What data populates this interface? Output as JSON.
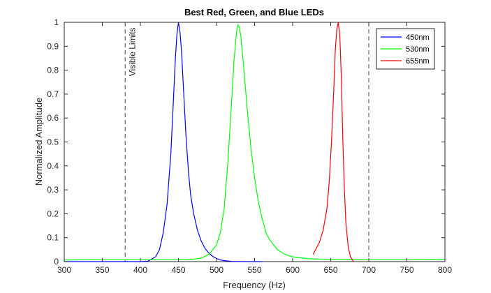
{
  "chart_data": {
    "type": "line",
    "title": "Best Red, Green, and Blue LEDs",
    "xlabel": "Frequency (Hz)",
    "ylabel": "Normalized Amplitude",
    "xlim": [
      300,
      800
    ],
    "ylim": [
      0,
      1
    ],
    "xticks": [
      300,
      350,
      400,
      450,
      500,
      550,
      600,
      650,
      700,
      750,
      800
    ],
    "yticks": [
      0,
      0.1,
      0.2,
      0.3,
      0.4,
      0.5,
      0.6,
      0.7,
      0.8,
      0.9,
      1
    ],
    "ytick_labels": [
      "0",
      "0.1",
      "0.2",
      "0.3",
      "0.4",
      "0.5",
      "0.6",
      "0.7",
      "0.8",
      "0.9",
      "1"
    ],
    "grid": false,
    "legend_position": "top-right",
    "series": [
      {
        "name": "450nm",
        "color": "#0000ff",
        "x": [
          300,
          400,
          410,
          420,
          425,
          430,
          435,
          440,
          443,
          446,
          448,
          450,
          452,
          454,
          457,
          460,
          463,
          466,
          470,
          475,
          480,
          485,
          490,
          495,
          500,
          505,
          510,
          520,
          540,
          560
        ],
        "y": [
          0.0,
          0.0,
          0.002,
          0.02,
          0.05,
          0.12,
          0.24,
          0.45,
          0.65,
          0.85,
          0.95,
          1.0,
          0.96,
          0.88,
          0.7,
          0.52,
          0.38,
          0.28,
          0.2,
          0.13,
          0.085,
          0.055,
          0.035,
          0.022,
          0.013,
          0.007,
          0.004,
          0.001,
          0.0,
          0.0
        ]
      },
      {
        "name": "530nm",
        "color": "#00ff00",
        "x": [
          300,
          350,
          400,
          450,
          470,
          480,
          490,
          500,
          505,
          510,
          515,
          520,
          523,
          526,
          528,
          530,
          532,
          535,
          540,
          545,
          550,
          555,
          560,
          565,
          570,
          580,
          590,
          600,
          620,
          650,
          700,
          750,
          800
        ],
        "y": [
          0.007,
          0.008,
          0.008,
          0.008,
          0.01,
          0.015,
          0.03,
          0.07,
          0.12,
          0.22,
          0.42,
          0.68,
          0.84,
          0.95,
          0.99,
          0.98,
          0.94,
          0.84,
          0.65,
          0.48,
          0.35,
          0.25,
          0.18,
          0.12,
          0.09,
          0.05,
          0.03,
          0.02,
          0.012,
          0.009,
          0.008,
          0.008,
          0.01
        ]
      },
      {
        "name": "655nm",
        "color": "#ff0000",
        "x": [
          627,
          635,
          640,
          645,
          648,
          651,
          654,
          656,
          658,
          660,
          662,
          664,
          666,
          668,
          670,
          673,
          676,
          680
        ],
        "y": [
          0.03,
          0.08,
          0.13,
          0.22,
          0.33,
          0.5,
          0.72,
          0.88,
          0.97,
          1.0,
          0.94,
          0.76,
          0.5,
          0.3,
          0.16,
          0.06,
          0.02,
          0.0
        ]
      }
    ],
    "reference_lines": [
      {
        "x": 380,
        "style": "dashed",
        "color": "#444444"
      },
      {
        "x": 700,
        "style": "dashed",
        "color": "#444444"
      }
    ],
    "annotation": {
      "text": "Visible Limits",
      "x": 385,
      "y": 0.99,
      "rotation": -90
    }
  }
}
